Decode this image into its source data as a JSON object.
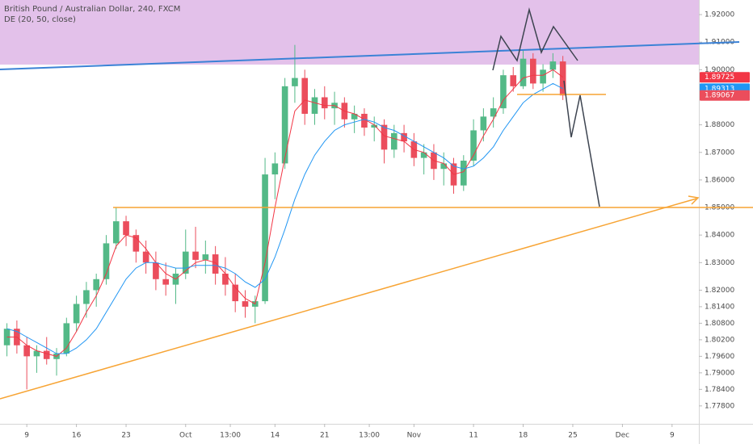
{
  "chart_data": {
    "type": "candlestick",
    "title": "British Pound / Australian Dollar, 240, FXCM",
    "subtitle": "DE (20, 50, close)",
    "x": [
      -2,
      -1,
      0,
      1,
      2,
      3,
      4,
      5,
      6,
      7,
      8,
      9,
      10,
      11,
      12,
      13,
      14,
      15,
      16,
      17,
      18,
      19,
      20,
      21,
      22,
      23,
      24,
      25,
      26,
      27,
      28,
      29,
      30,
      31,
      32,
      33,
      34,
      35,
      36,
      37,
      38,
      39,
      40,
      41,
      42,
      43,
      44,
      45,
      46,
      47,
      48,
      49,
      50,
      51,
      52,
      53,
      54
    ],
    "open": [
      1.8,
      1.806,
      1.8,
      1.796,
      1.798,
      1.795,
      1.797,
      1.808,
      1.815,
      1.82,
      1.824,
      1.837,
      1.845,
      1.84,
      1.834,
      1.83,
      1.824,
      1.822,
      1.826,
      1.834,
      1.831,
      1.833,
      1.826,
      1.822,
      1.816,
      1.814,
      1.816,
      1.862,
      1.866,
      1.894,
      1.897,
      1.884,
      1.89,
      1.886,
      1.888,
      1.882,
      1.884,
      1.879,
      1.88,
      1.871,
      1.877,
      1.874,
      1.868,
      1.87,
      1.864,
      1.866,
      1.858,
      1.867,
      1.878,
      1.883,
      1.886,
      1.898,
      1.894,
      1.904,
      1.895,
      1.9,
      1.903
    ],
    "high": [
      1.808,
      1.809,
      1.803,
      1.8,
      1.803,
      1.799,
      1.81,
      1.818,
      1.823,
      1.826,
      1.84,
      1.85,
      1.847,
      1.842,
      1.838,
      1.834,
      1.83,
      1.828,
      1.842,
      1.843,
      1.838,
      1.836,
      1.832,
      1.826,
      1.82,
      1.818,
      1.868,
      1.87,
      1.897,
      1.909,
      1.9,
      1.893,
      1.894,
      1.892,
      1.89,
      1.887,
      1.886,
      1.883,
      1.882,
      1.88,
      1.88,
      1.877,
      1.873,
      1.873,
      1.87,
      1.868,
      1.869,
      1.882,
      1.886,
      1.89,
      1.9,
      1.901,
      1.907,
      1.906,
      1.902,
      1.906,
      1.905
    ],
    "low": [
      1.796,
      1.797,
      1.784,
      1.79,
      1.793,
      1.789,
      1.796,
      1.805,
      1.81,
      1.814,
      1.822,
      1.835,
      1.836,
      1.83,
      1.826,
      1.82,
      1.818,
      1.815,
      1.824,
      1.828,
      1.826,
      1.822,
      1.818,
      1.812,
      1.81,
      1.808,
      1.815,
      1.853,
      1.864,
      1.888,
      1.88,
      1.88,
      1.882,
      1.88,
      1.879,
      1.877,
      1.876,
      1.874,
      1.866,
      1.868,
      1.87,
      1.865,
      1.862,
      1.86,
      1.858,
      1.855,
      1.856,
      1.865,
      1.874,
      1.879,
      1.884,
      1.892,
      1.893,
      1.893,
      1.892,
      1.897,
      1.889
    ],
    "close": [
      1.806,
      1.8,
      1.796,
      1.798,
      1.795,
      1.797,
      1.808,
      1.815,
      1.82,
      1.824,
      1.837,
      1.845,
      1.84,
      1.834,
      1.83,
      1.824,
      1.822,
      1.826,
      1.834,
      1.831,
      1.833,
      1.826,
      1.822,
      1.816,
      1.814,
      1.816,
      1.862,
      1.866,
      1.894,
      1.897,
      1.884,
      1.89,
      1.886,
      1.888,
      1.882,
      1.884,
      1.879,
      1.88,
      1.871,
      1.877,
      1.874,
      1.868,
      1.87,
      1.864,
      1.866,
      1.858,
      1.867,
      1.878,
      1.883,
      1.886,
      1.898,
      1.894,
      1.904,
      1.895,
      1.9,
      1.903,
      1.89067
    ],
    "ma_fast": {
      "color": "#f23645",
      "values": [
        1.803,
        1.803,
        1.8,
        1.798,
        1.797,
        1.796,
        1.799,
        1.805,
        1.812,
        1.818,
        1.826,
        1.836,
        1.84,
        1.839,
        1.835,
        1.83,
        1.826,
        1.824,
        1.827,
        1.83,
        1.831,
        1.83,
        1.826,
        1.821,
        1.817,
        1.815,
        1.83,
        1.85,
        1.868,
        1.885,
        1.889,
        1.888,
        1.887,
        1.887,
        1.885,
        1.884,
        1.882,
        1.88,
        1.876,
        1.875,
        1.874,
        1.871,
        1.87,
        1.867,
        1.866,
        1.862,
        1.863,
        1.869,
        1.876,
        1.882,
        1.889,
        1.893,
        1.897,
        1.898,
        1.898,
        1.9,
        1.89725
      ]
    },
    "ma_slow": {
      "color": "#2196f3",
      "values": [
        1.806,
        1.805,
        1.803,
        1.801,
        1.799,
        1.797,
        1.797,
        1.799,
        1.802,
        1.806,
        1.812,
        1.818,
        1.824,
        1.828,
        1.83,
        1.83,
        1.829,
        1.828,
        1.828,
        1.829,
        1.829,
        1.829,
        1.828,
        1.826,
        1.823,
        1.821,
        1.824,
        1.832,
        1.842,
        1.853,
        1.862,
        1.869,
        1.874,
        1.878,
        1.88,
        1.881,
        1.882,
        1.881,
        1.879,
        1.878,
        1.876,
        1.874,
        1.872,
        1.87,
        1.868,
        1.865,
        1.864,
        1.865,
        1.868,
        1.872,
        1.878,
        1.883,
        1.888,
        1.891,
        1.893,
        1.895,
        1.89313
      ]
    },
    "up_color": "#53b987",
    "down_color": "#eb4d5c",
    "xlim": [
      -2.7,
      67.7
    ],
    "xticks": [
      {
        "value": 0,
        "label": "9"
      },
      {
        "value": 5,
        "label": "16"
      },
      {
        "value": 10,
        "label": "23"
      },
      {
        "value": 16,
        "label": "Oct"
      },
      {
        "value": 20.5,
        "label": "13:00"
      },
      {
        "value": 25,
        "label": "14"
      },
      {
        "value": 30,
        "label": "21"
      },
      {
        "value": 34.5,
        "label": "13:00"
      },
      {
        "value": 39,
        "label": "Nov"
      },
      {
        "value": 45,
        "label": "11"
      },
      {
        "value": 50,
        "label": "18"
      },
      {
        "value": 55,
        "label": "25"
      },
      {
        "value": 60,
        "label": "Dec"
      },
      {
        "value": 65,
        "label": "9"
      }
    ],
    "ylim": [
      1.7715,
      1.9253
    ],
    "yticks": [
      {
        "value": 1.92,
        "label": "1.92000"
      },
      {
        "value": 1.91,
        "label": "1.91000"
      },
      {
        "value": 1.9,
        "label": "1.90000"
      },
      {
        "value": 1.88,
        "label": "1.88000"
      },
      {
        "value": 1.87,
        "label": "1.87000"
      },
      {
        "value": 1.86,
        "label": "1.86000"
      },
      {
        "value": 1.85,
        "label": "1.85000"
      },
      {
        "value": 1.84,
        "label": "1.84000"
      },
      {
        "value": 1.83,
        "label": "1.83000"
      },
      {
        "value": 1.82,
        "label": "1.82000"
      },
      {
        "value": 1.814,
        "label": "1.81400"
      },
      {
        "value": 1.808,
        "label": "1.80800"
      },
      {
        "value": 1.802,
        "label": "1.80200"
      },
      {
        "value": 1.796,
        "label": "1.79600"
      },
      {
        "value": 1.79,
        "label": "1.79000"
      },
      {
        "value": 1.784,
        "label": "1.78400"
      },
      {
        "value": 1.778,
        "label": "1.77800"
      }
    ],
    "grid": false
  }
}
